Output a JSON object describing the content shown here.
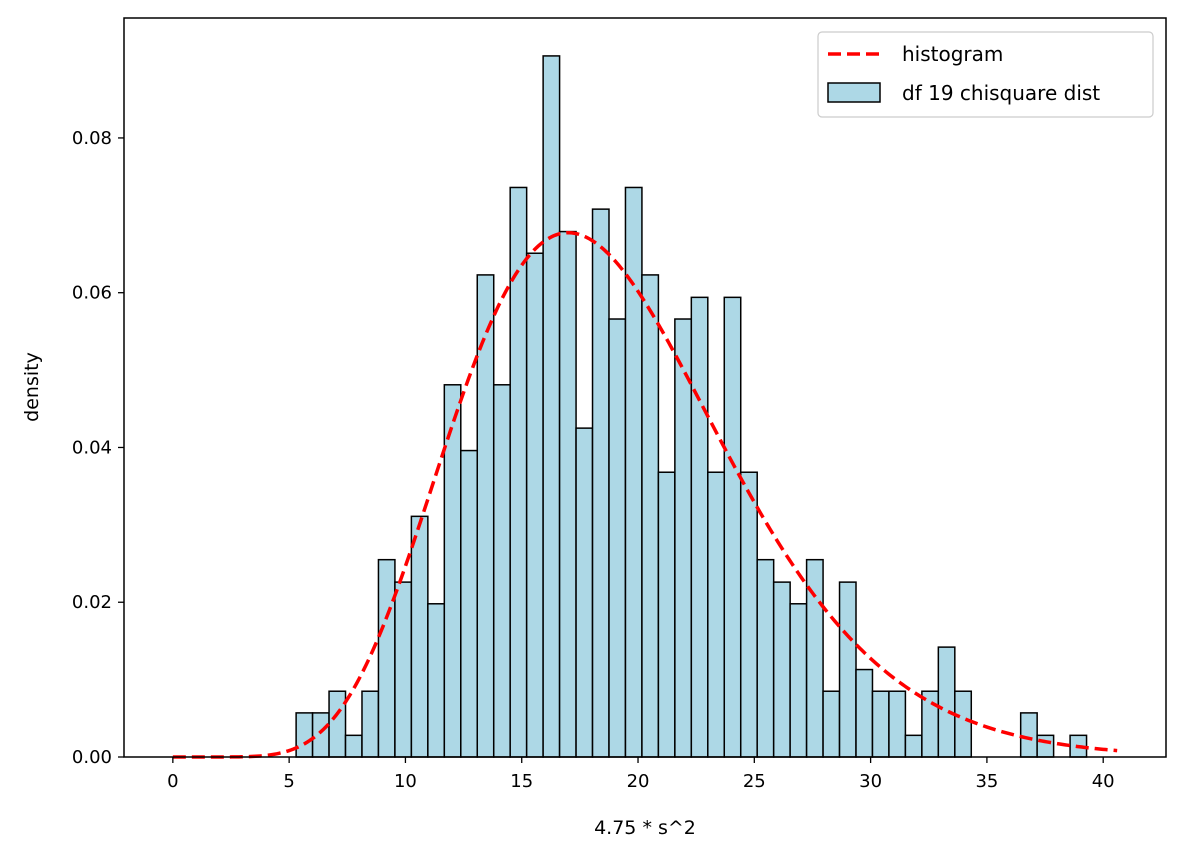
{
  "chart_data": {
    "type": "bar",
    "xlabel": "4.75 * s^2",
    "ylabel": "density",
    "xlim": [
      -2.1,
      42.7
    ],
    "ylim": [
      0,
      0.0955
    ],
    "xticks": [
      0,
      5,
      10,
      15,
      20,
      25,
      30,
      35,
      40
    ],
    "yticks": [
      0.0,
      0.02,
      0.04,
      0.06,
      0.08
    ],
    "xtick_labels": [
      "0",
      "5",
      "10",
      "15",
      "20",
      "25",
      "30",
      "35",
      "40"
    ],
    "ytick_labels": [
      "0.00",
      "0.02",
      "0.04",
      "0.06",
      "0.08"
    ],
    "grid": false,
    "legend_position": "top-right",
    "legend": {
      "line_label": "histogram",
      "bar_label": "df 19 chisquare dist"
    },
    "colors": {
      "bar_fill": "#add8e6",
      "bar_edge": "#000000",
      "curve": "#ff0000"
    },
    "histogram": {
      "bin_start": 5.3,
      "bin_width": 0.708,
      "values": [
        0.0057,
        0.0057,
        0.0085,
        0.0028,
        0.0085,
        0.0255,
        0.0226,
        0.0311,
        0.0198,
        0.0481,
        0.0396,
        0.0623,
        0.0481,
        0.0736,
        0.0651,
        0.0906,
        0.0679,
        0.0425,
        0.0708,
        0.0566,
        0.0736,
        0.0623,
        0.0368,
        0.0566,
        0.0594,
        0.0368,
        0.0594,
        0.0368,
        0.0255,
        0.0226,
        0.0198,
        0.0255,
        0.0085,
        0.0226,
        0.0113,
        0.0085,
        0.0085,
        0.0028,
        0.0085,
        0.0142,
        0.0085,
        0.0,
        0.0,
        0.0,
        0.0057,
        0.0028,
        0.0,
        0.0028
      ]
    },
    "series": [
      {
        "name": "histogram",
        "type": "line",
        "style": "dashed",
        "function": "chi2_pdf",
        "df": 19,
        "x_range": [
          0,
          40.6
        ]
      }
    ]
  }
}
